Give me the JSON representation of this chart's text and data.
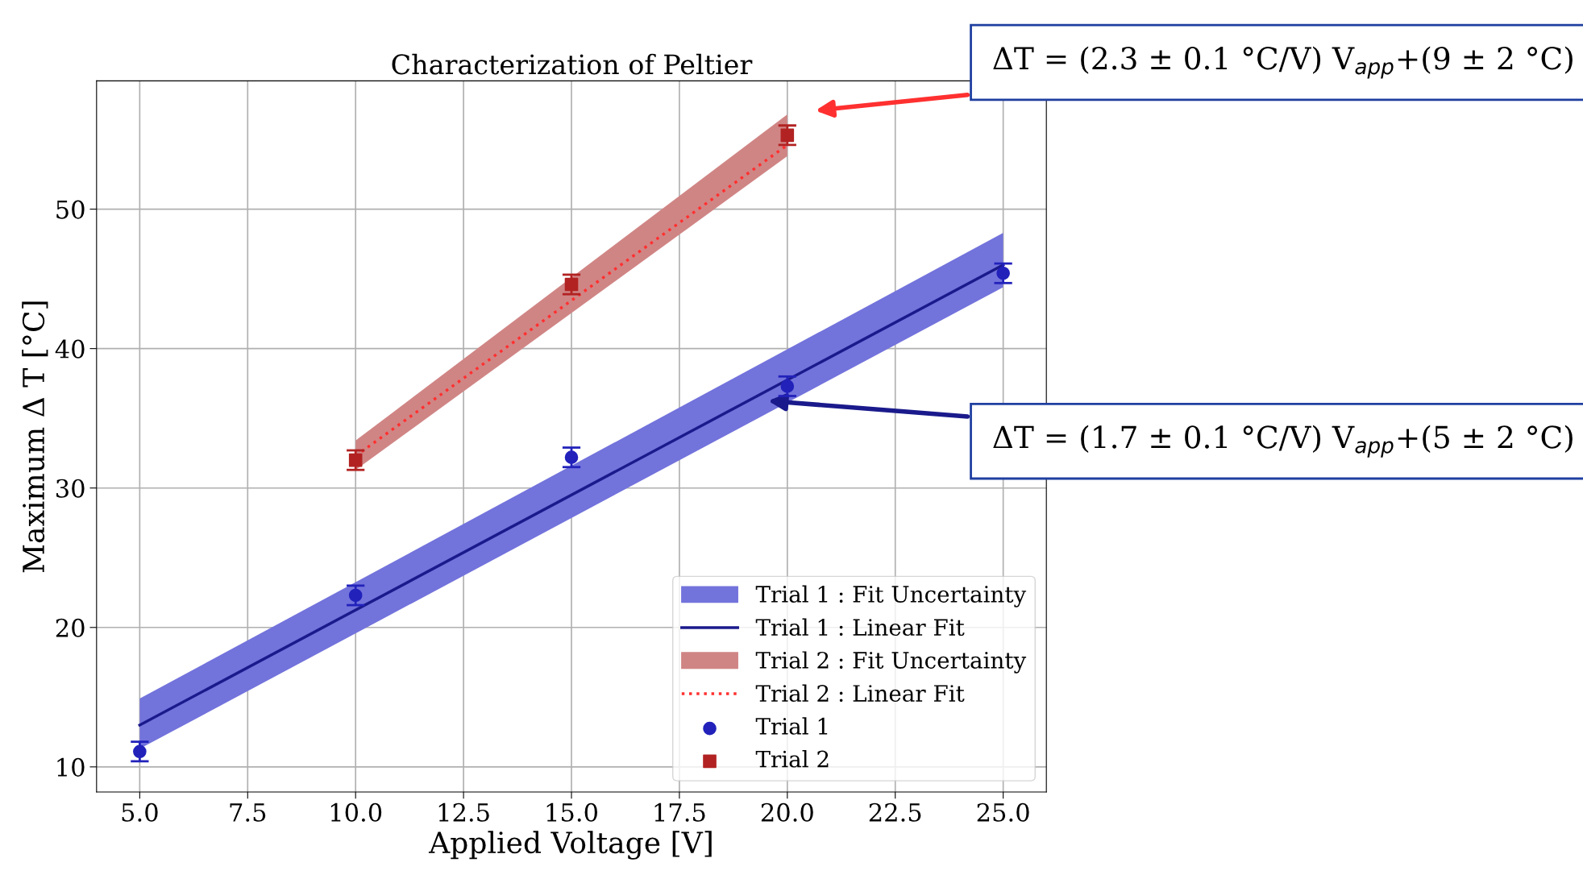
{
  "chart_data": {
    "type": "scatter",
    "title": "Characterization of Peltier",
    "xlabel": "Applied Voltage [V]",
    "ylabel": "Maximum Δ T [°C]",
    "xlim": [
      4.0,
      26.0
    ],
    "xticks": [
      {
        "value": 5,
        "label": "5.0"
      },
      {
        "value": 7.5,
        "label": "7.5"
      },
      {
        "value": 10,
        "label": "10.0"
      },
      {
        "value": 12.5,
        "label": "12.5"
      },
      {
        "value": 15,
        "label": "15.0"
      },
      {
        "value": 17.5,
        "label": "17.5"
      },
      {
        "value": 20,
        "label": "20.0"
      },
      {
        "value": 22.5,
        "label": "22.5"
      },
      {
        "value": 25,
        "label": "25.0"
      }
    ],
    "ylim": [
      8.2,
      59.2
    ],
    "yticks": [
      10,
      20,
      30,
      40,
      50
    ],
    "grid": true,
    "legend": "bottom right",
    "series": [
      {
        "type": "line",
        "name": "Trial 1 : Fit Uncertainty",
        "color": "#7373dc",
        "x": [
          5,
          25
        ],
        "values": [
          null,
          null
        ],
        "lower": [
          11.3,
          44.4
        ],
        "upper": [
          14.9,
          48.3
        ]
      },
      {
        "type": "line",
        "name": "Trial 1 : Linear Fit",
        "color": "#1a1a8c",
        "line_style": "solid",
        "x": [
          5,
          25
        ],
        "values": [
          13.0,
          46.0
        ]
      },
      {
        "type": "line",
        "name": "Trial 2 : Fit Uncertainty",
        "color": "#d08585",
        "x": [
          10,
          20
        ],
        "values": [
          null,
          null
        ],
        "lower": [
          31.3,
          53.8
        ],
        "upper": [
          33.4,
          56.8
        ]
      },
      {
        "type": "line",
        "name": "Trial 2 : Linear Fit",
        "color": "#ff3030",
        "line_style": "dotted",
        "x": [
          10,
          20
        ],
        "values": [
          32.3,
          54.6
        ]
      },
      {
        "name": "Trial 1",
        "color": "#2222bb",
        "marker": "circle",
        "x": [
          5,
          10,
          15,
          20,
          25
        ],
        "values": [
          11.1,
          22.3,
          32.2,
          37.3,
          45.4
        ],
        "errors": [
          0.7,
          0.7,
          0.7,
          0.7,
          0.7
        ]
      },
      {
        "name": "Trial 2",
        "color": "#b22222",
        "marker": "square",
        "x": [
          10,
          15,
          20
        ],
        "values": [
          32.0,
          44.6,
          55.3
        ],
        "errors": [
          0.7,
          0.7,
          0.7
        ]
      }
    ],
    "annotations": [
      "ΔT = (2.3 ± 0.1 °C/V) V$_{app}$+(9 ± 2 °C)",
      "ΔT = (1.7 ± 0.1 °C/V) V$_{app}$+(5 ± 2 °C)"
    ]
  }
}
